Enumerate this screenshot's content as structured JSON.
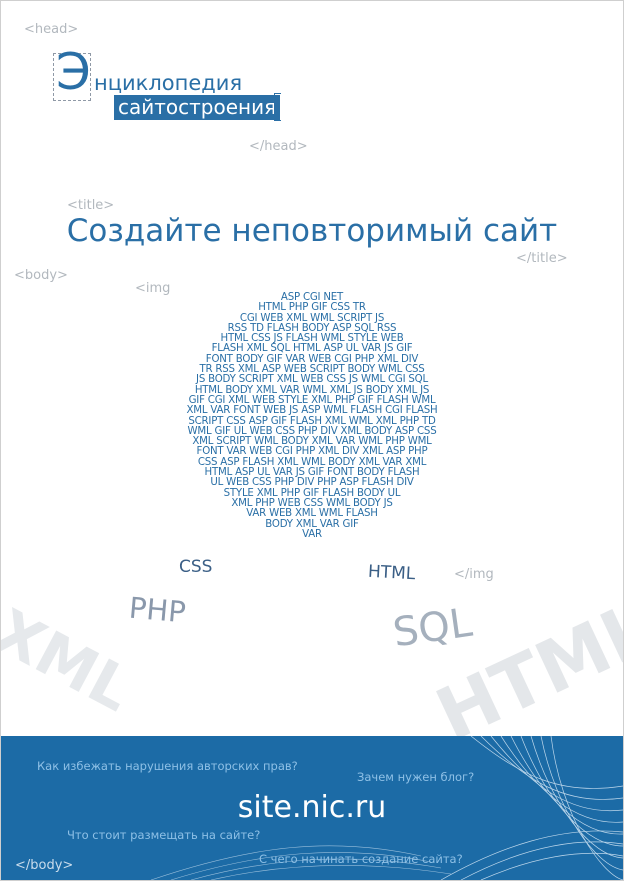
{
  "tags": {
    "head_open": "<head>",
    "head_close": "</head>",
    "title_open": "<title>",
    "title_close": "</title>",
    "body_open": "<body>",
    "img_open": "<img",
    "img_close": "</img",
    "body_close": "</body>"
  },
  "logo": {
    "letter": "Э",
    "line1": "нциклопедия",
    "line2": "сайтостроения"
  },
  "headline": "Создайте неповторимый сайт",
  "cloud_lines": [
    "ASP CGI NET",
    "HTML PHP GIF CSS TR",
    "CGI WEB XML WML SCRIPT JS",
    "RSS TD FLASH BODY ASP SQL RSS",
    "HTML CSS JS FLASH WML STYLE WEB",
    "FLASH XML SQL HTML ASP UL VAR JS GIF",
    "FONT BODY GIF VAR WEB CGI PHP XML DIV",
    "TR RSS XML ASP WEB SCRIPT BODY WML CSS",
    "JS BODY SCRIPT XML WEB CSS JS WML CGI SQL",
    "HTML BODY XML VAR WML XML JS BODY XML JS",
    "GIF CGI XML WEB STYLE XML PHP GIF FLASH WML",
    "XML VAR FONT WEB JS ASP WML FLASH CGI FLASH",
    "SCRIPT CSS ASP GIF FLASH XML WML XML PHP TD",
    "WML GIF UL WEB CSS PHP DIV XML BODY ASP CSS",
    "XML SCRIPT WML BODY XML VAR WML PHP WML",
    "FONT VAR WEB CGI PHP XML DIV XML ASP PHP",
    "CSS ASP FLASH XML WML BODY XML VAR XML",
    "HTML ASP UL VAR JS GIF FONT BODY FLASH",
    "UL WEB CSS PHP DIV PHP ASP FLASH DIV",
    "STYLE XML PHP GIF FLASH BODY UL",
    "XML PHP WEB CSS WML BODY JS",
    "VAR WEB XML WML FLASH",
    "BODY      XML      VAR      GIF",
    "VAR"
  ],
  "words": {
    "css": "CSS",
    "html": "HTML",
    "php": "PHP",
    "sql": "SQL",
    "xml": "XML",
    "html_big": "HTML"
  },
  "footer": {
    "url": "site.nic.ru",
    "q1": "Как избежать нарушения авторских прав?",
    "q2": "Зачем нужен блог?",
    "q3": "Что стоит размещать на сайте?",
    "q4": "С чего начинать создание сайта?"
  },
  "colors": {
    "brand_blue": "#2a6fa6",
    "footer_blue": "#1c6ba6"
  }
}
